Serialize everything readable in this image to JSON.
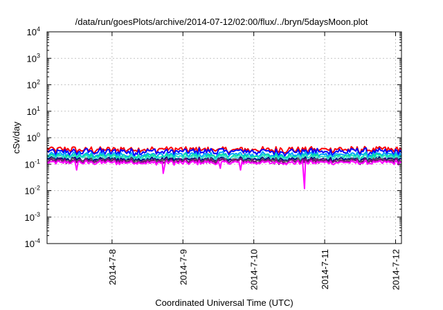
{
  "chart_data": {
    "type": "line",
    "title": "/data/run/goesPlots/archive/2014-07-12/02:00/flux/../bryn/5daysMoon.plot",
    "xlabel": "Coordinated Universal Time (UTC)",
    "ylabel": "cSv/day",
    "yscale": "log",
    "ylim": [
      0.0001,
      10000
    ],
    "y_ticks": [
      {
        "value": 0.0001,
        "base": "10",
        "exp": "-4"
      },
      {
        "value": 0.001,
        "base": "10",
        "exp": "-3"
      },
      {
        "value": 0.01,
        "base": "10",
        "exp": "-2"
      },
      {
        "value": 0.1,
        "base": "10",
        "exp": "-1"
      },
      {
        "value": 1,
        "base": "10",
        "exp": "0"
      },
      {
        "value": 10,
        "base": "10",
        "exp": "1"
      },
      {
        "value": 100,
        "base": "10",
        "exp": "2"
      },
      {
        "value": 1000,
        "base": "10",
        "exp": "3"
      },
      {
        "value": 10000,
        "base": "10",
        "exp": "4"
      }
    ],
    "xlim": [
      "2014-07-07 02:00",
      "2014-07-12 02:00"
    ],
    "x_ticks": [
      {
        "value": "2014-07-08 00:00",
        "label": "2014-7-8"
      },
      {
        "value": "2014-07-09 00:00",
        "label": "2014-7-9"
      },
      {
        "value": "2014-07-10 00:00",
        "label": "2014-7-10"
      },
      {
        "value": "2014-07-11 00:00",
        "label": "2014-7-11"
      },
      {
        "value": "2014-07-12 00:00",
        "label": "2014-7-12"
      }
    ],
    "grid": true,
    "legend": "none",
    "series": [
      {
        "color": "#ff0000",
        "level": 0.36,
        "spread": 0.1
      },
      {
        "color": "#0000ff",
        "level": 0.3,
        "spread": 0.1
      },
      {
        "color": "#00a0ff",
        "level": 0.23,
        "spread": 0.06
      },
      {
        "color": "#00e0a0",
        "level": 0.2,
        "spread": 0.05
      },
      {
        "color": "#40e0d0",
        "level": 0.18,
        "spread": 0.04
      },
      {
        "color": "#000080",
        "level": 0.155,
        "spread": 0.03
      },
      {
        "color": "#606060",
        "level": 0.14,
        "spread": 0.03
      },
      {
        "color": "#800080",
        "level": 0.13,
        "spread": 0.03
      },
      {
        "color": "#ff00ff",
        "level": 0.115,
        "spread": 0.02,
        "dips": [
          {
            "x": "2014-07-07 12:00",
            "y": 0.06
          },
          {
            "x": "2014-07-08 17:20",
            "y": 0.045
          },
          {
            "x": "2014-07-09 12:40",
            "y": 0.07
          },
          {
            "x": "2014-07-09 19:30",
            "y": 0.06
          },
          {
            "x": "2014-07-10 17:10",
            "y": 0.012
          }
        ]
      }
    ]
  }
}
